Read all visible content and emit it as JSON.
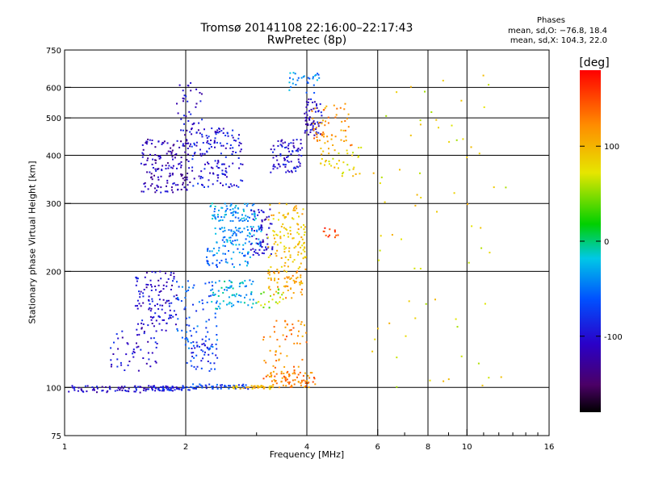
{
  "chart_data": {
    "type": "scatter",
    "title": "Tromsø 20141108 22:16:00–22:17:43",
    "subtitle": "RwPretec (8p)",
    "xlabel": "Frequency [MHz]",
    "ylabel": "Stationary phase Virtual Height [km]",
    "x_scale": "log",
    "y_scale": "log",
    "xlim": [
      1,
      16
    ],
    "ylim": [
      75,
      750
    ],
    "x_ticks": [
      1,
      2,
      4,
      6,
      8,
      10,
      16
    ],
    "x_minor_ticks": [
      3,
      7,
      9,
      11,
      12,
      13,
      14,
      15
    ],
    "y_ticks": [
      75,
      100,
      200,
      300,
      400,
      500,
      600,
      750
    ],
    "grid": true,
    "phase_stats": {
      "title": "Phases",
      "o_line": "mean, sd,O: −76.8, 18.4",
      "x_line": "mean, sd,X: 104.3, 22.0"
    },
    "colorbar": {
      "unit": "[deg]",
      "ticks": [
        100,
        0,
        -100
      ],
      "range": [
        -180,
        180
      ],
      "colormap": "rainbow (black-purple-blue-cyan-green-yellow-orange-red)"
    },
    "clusters": [
      {
        "f": [
          1.0,
          1.65
        ],
        "h": [
          97,
          101
        ],
        "phase": -105,
        "n": 70
      },
      {
        "f": [
          1.65,
          2.05
        ],
        "h": [
          98,
          101
        ],
        "phase": -90,
        "n": 60
      },
      {
        "f": [
          2.05,
          2.9
        ],
        "h": [
          99,
          102
        ],
        "phase": -70,
        "n": 50
      },
      {
        "f": [
          2.6,
          3.3
        ],
        "h": [
          99,
          101
        ],
        "phase": 95,
        "n": 40
      },
      {
        "f": [
          3.2,
          4.2
        ],
        "h": [
          100,
          110
        ],
        "phase": 125,
        "n": 70
      },
      {
        "f": [
          1.55,
          2.05
        ],
        "h": [
          320,
          440
        ],
        "phase": -115,
        "n": 160
      },
      {
        "f": [
          2.05,
          2.8
        ],
        "h": [
          330,
          470
        ],
        "phase": -95,
        "n": 150
      },
      {
        "f": [
          1.9,
          2.2
        ],
        "h": [
          440,
          620
        ],
        "phase": -105,
        "n": 40
      },
      {
        "f": [
          2.3,
          3.0
        ],
        "h": [
          270,
          300
        ],
        "phase": -35,
        "n": 80
      },
      {
        "f": [
          2.35,
          3.1
        ],
        "h": [
          230,
          262
        ],
        "phase": -40,
        "n": 80
      },
      {
        "f": [
          2.25,
          2.9
        ],
        "h": [
          205,
          230
        ],
        "phase": -45,
        "n": 50
      },
      {
        "f": [
          2.9,
          3.3
        ],
        "h": [
          220,
          290
        ],
        "phase": -110,
        "n": 60
      },
      {
        "f": [
          3.25,
          3.9
        ],
        "h": [
          360,
          440
        ],
        "phase": -100,
        "n": 80
      },
      {
        "f": [
          3.95,
          4.4
        ],
        "h": [
          450,
          560
        ],
        "phase": -105,
        "n": 60
      },
      {
        "f": [
          3.6,
          4.3
        ],
        "h": [
          580,
          660
        ],
        "phase": -40,
        "n": 30
      },
      {
        "f": [
          4.1,
          5.2
        ],
        "h": [
          420,
          550
        ],
        "phase": 120,
        "n": 60
      },
      {
        "f": [
          4.3,
          5.5
        ],
        "h": [
          350,
          420
        ],
        "phase": 85,
        "n": 40
      },
      {
        "f": [
          3.2,
          4.0
        ],
        "h": [
          200,
          300
        ],
        "phase": 95,
        "n": 120
      },
      {
        "f": [
          3.2,
          3.9
        ],
        "h": [
          170,
          200
        ],
        "phase": 110,
        "n": 60
      },
      {
        "f": [
          3.0,
          3.5
        ],
        "h": [
          160,
          180
        ],
        "phase": 50,
        "n": 20
      },
      {
        "f": [
          3.1,
          4.0
        ],
        "h": [
          105,
          150
        ],
        "phase": 125,
        "n": 60
      },
      {
        "f": [
          4.4,
          4.8
        ],
        "h": [
          245,
          260
        ],
        "phase": 160,
        "n": 12
      },
      {
        "f": [
          1.5,
          1.9
        ],
        "h": [
          140,
          200
        ],
        "phase": -105,
        "n": 120
      },
      {
        "f": [
          1.3,
          1.7
        ],
        "h": [
          110,
          140
        ],
        "phase": -100,
        "n": 50
      },
      {
        "f": [
          1.9,
          2.4
        ],
        "h": [
          125,
          190
        ],
        "phase": -60,
        "n": 80
      },
      {
        "f": [
          2.3,
          3.0
        ],
        "h": [
          160,
          190
        ],
        "phase": -25,
        "n": 70
      },
      {
        "f": [
          2.0,
          2.4
        ],
        "h": [
          110,
          130
        ],
        "phase": -80,
        "n": 40
      },
      {
        "f": [
          5.8,
          12.6
        ],
        "h": [
          100,
          650
        ],
        "phase": 80,
        "n": 70
      }
    ]
  }
}
